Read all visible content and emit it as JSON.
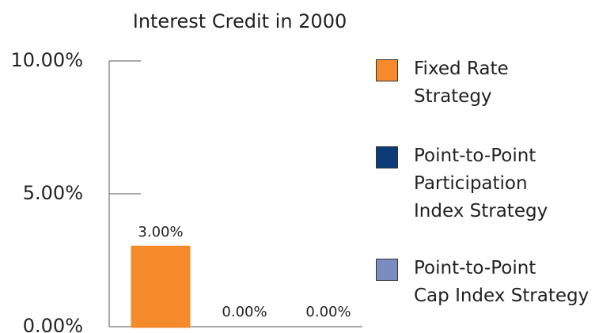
{
  "chart_data": {
    "type": "bar",
    "title": "Interest Credit in 2000",
    "series": [
      {
        "name": "Fixed Rate\nStrategy",
        "color": "#f58a2a",
        "values": [
          3
        ],
        "value_labels": [
          "3.00%"
        ]
      },
      {
        "name": "Point-to-Point\nParticipation\nIndex Strategy",
        "color": "#0b3c78",
        "values": [
          0
        ],
        "value_labels": [
          "0.00%"
        ]
      },
      {
        "name": "Point-to-Point\nCap Index Strategy",
        "color": "#7b8cc0",
        "values": [
          0
        ],
        "value_labels": [
          "0.00%"
        ]
      }
    ],
    "ylim": [
      0,
      10
    ],
    "yticks": [
      {
        "value": 0,
        "label": "0.00%"
      },
      {
        "value": 5,
        "label": "5.00%"
      },
      {
        "value": 10,
        "label": "10.00%"
      }
    ],
    "legend": "right"
  }
}
